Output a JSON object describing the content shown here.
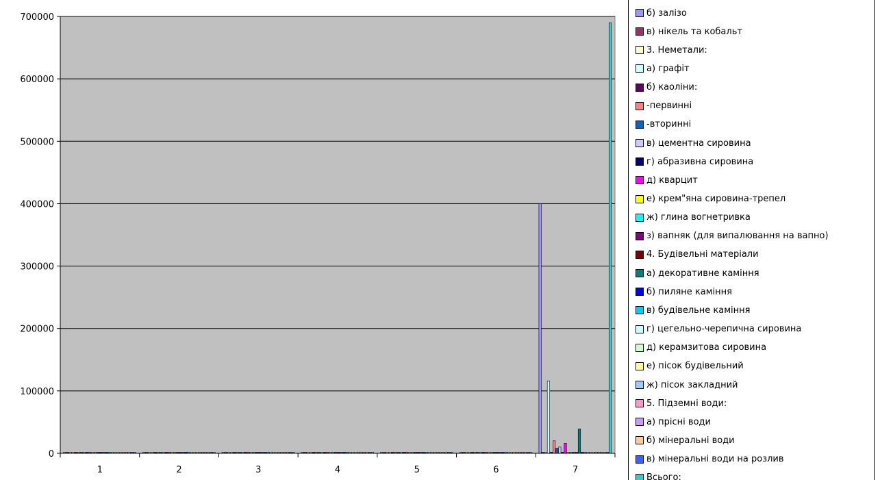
{
  "chart_data": {
    "type": "bar",
    "categories": [
      "1",
      "2",
      "3",
      "4",
      "5",
      "6",
      "7"
    ],
    "ylim": [
      0,
      700000
    ],
    "yticks": [
      "0",
      "100000",
      "200000",
      "300000",
      "400000",
      "500000",
      "600000",
      "700000"
    ],
    "grid": true,
    "legend_position": "right",
    "plot_background": "#c0c0c0",
    "series": [
      {
        "name": "б) залізо",
        "color": "#9999ff",
        "values": [
          0,
          0,
          0,
          0,
          0,
          0,
          400000
        ]
      },
      {
        "name": "в) нікель та кобальт",
        "color": "#993366",
        "values": [
          0,
          0,
          0,
          0,
          0,
          0,
          0
        ]
      },
      {
        "name": "3. Неметали:",
        "color": "#ffffcc",
        "values": [
          0,
          0,
          0,
          0,
          0,
          0,
          0
        ]
      },
      {
        "name": "а) графіт",
        "color": "#ccffff",
        "values": [
          0,
          0,
          0,
          0,
          0,
          0,
          116000
        ]
      },
      {
        "name": "б) каоліни:",
        "color": "#660066",
        "values": [
          0,
          0,
          0,
          0,
          0,
          0,
          0
        ]
      },
      {
        "name": "-первинні",
        "color": "#ff8080",
        "values": [
          0,
          0,
          0,
          0,
          0,
          0,
          20000
        ]
      },
      {
        "name": "-вторинні",
        "color": "#0066cc",
        "values": [
          0,
          0,
          0,
          0,
          0,
          0,
          8000
        ]
      },
      {
        "name": "в) цементна сировина",
        "color": "#ccccff",
        "values": [
          0,
          0,
          0,
          0,
          0,
          0,
          10000
        ]
      },
      {
        "name": "г) абразивна сировина",
        "color": "#000080",
        "values": [
          0,
          0,
          0,
          0,
          0,
          0,
          0
        ]
      },
      {
        "name": "д) кварцит",
        "color": "#ff00ff",
        "values": [
          0,
          0,
          0,
          0,
          0,
          0,
          16000
        ]
      },
      {
        "name": "е) крем\"яна сировина-трепел",
        "color": "#ffff00",
        "values": [
          0,
          0,
          0,
          0,
          0,
          0,
          0
        ]
      },
      {
        "name": "ж) глина вогнетривка",
        "color": "#00ffff",
        "values": [
          0,
          0,
          0,
          0,
          0,
          0,
          0
        ]
      },
      {
        "name": "з) вапняк (для випалювання на вапно)",
        "color": "#800080",
        "values": [
          0,
          0,
          0,
          0,
          0,
          0,
          0
        ]
      },
      {
        "name": "4. Будівельні матеріали",
        "color": "#800000",
        "values": [
          0,
          0,
          0,
          0,
          0,
          0,
          0
        ]
      },
      {
        "name": "а) декоративне каміння",
        "color": "#008080",
        "values": [
          0,
          0,
          0,
          0,
          0,
          0,
          39000
        ]
      },
      {
        "name": "б) пиляне каміння",
        "color": "#0000ff",
        "values": [
          0,
          0,
          0,
          0,
          0,
          0,
          0
        ]
      },
      {
        "name": "в) будівельне каміння",
        "color": "#00ccff",
        "values": [
          0,
          0,
          0,
          0,
          0,
          0,
          0
        ]
      },
      {
        "name": "г) цегельно-черепична сировина",
        "color": "#ccffff",
        "values": [
          0,
          0,
          0,
          0,
          0,
          0,
          0
        ]
      },
      {
        "name": "д) керамзитова сировина",
        "color": "#ccffcc",
        "values": [
          0,
          0,
          0,
          0,
          0,
          0,
          0
        ]
      },
      {
        "name": "е) пісок будівельний",
        "color": "#ffff99",
        "values": [
          0,
          0,
          0,
          0,
          0,
          0,
          0
        ]
      },
      {
        "name": "ж) пісок закладний",
        "color": "#99ccff",
        "values": [
          0,
          0,
          0,
          0,
          0,
          0,
          0
        ]
      },
      {
        "name": "5. Підземні води:",
        "color": "#ff99cc",
        "values": [
          0,
          0,
          0,
          0,
          0,
          0,
          0
        ]
      },
      {
        "name": "а) прісні води",
        "color": "#cc99ff",
        "values": [
          0,
          0,
          0,
          0,
          0,
          0,
          0
        ]
      },
      {
        "name": "б) мінеральні води",
        "color": "#ffcc99",
        "values": [
          0,
          0,
          0,
          0,
          0,
          0,
          0
        ]
      },
      {
        "name": "в) мінеральні води на розлив",
        "color": "#3366ff",
        "values": [
          0,
          0,
          0,
          0,
          0,
          0,
          0
        ]
      },
      {
        "name": "Всього:",
        "color": "#33cccc",
        "values": [
          0,
          0,
          0,
          0,
          0,
          0,
          690000
        ]
      }
    ]
  }
}
